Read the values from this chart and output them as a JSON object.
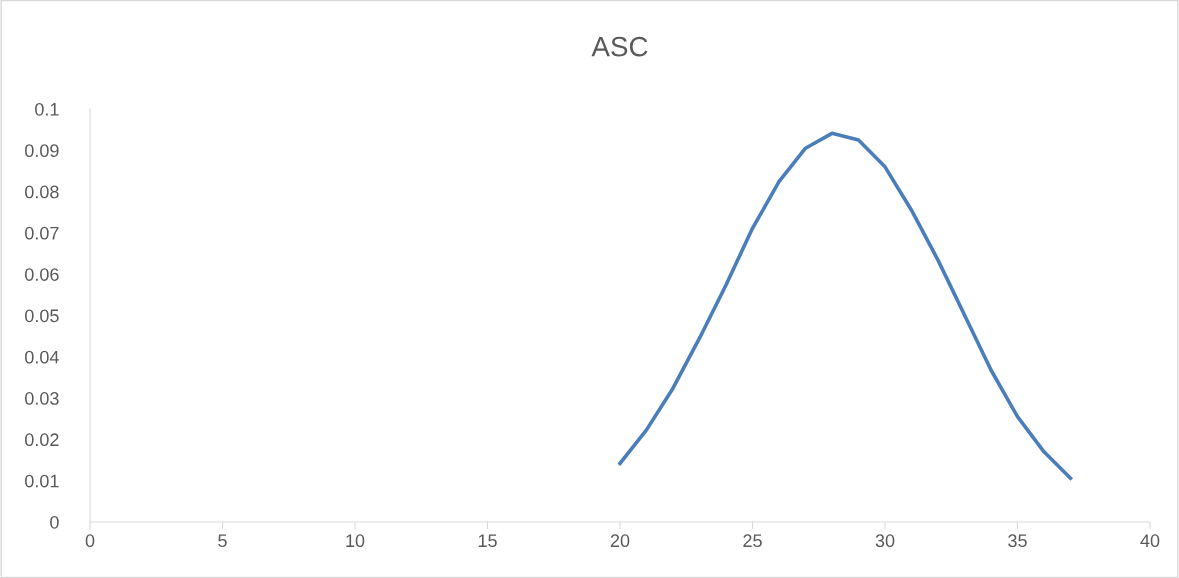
{
  "chart_data": {
    "type": "line",
    "title": "ASC",
    "x": [
      20,
      21,
      22,
      23,
      24,
      25,
      26,
      27,
      28,
      29,
      30,
      31,
      32,
      33,
      34,
      35,
      36,
      37
    ],
    "series": [
      {
        "color": "#4a7ebb",
        "values": [
          0.0142,
          0.0223,
          0.0324,
          0.0445,
          0.0574,
          0.0711,
          0.0824,
          0.0905,
          0.0941,
          0.0925,
          0.086,
          0.0755,
          0.0634,
          0.0501,
          0.0368,
          0.0255,
          0.017,
          0.0106
        ]
      }
    ],
    "xlim": [
      0,
      40
    ],
    "xticks": [
      0,
      5,
      10,
      15,
      20,
      25,
      30,
      35,
      40
    ],
    "ylim": [
      0,
      0.1
    ],
    "yticks": [
      0,
      0.01,
      0.02,
      0.03,
      0.04,
      0.05,
      0.06,
      0.07,
      0.08,
      0.09,
      0.1
    ],
    "grid": false,
    "legend": false,
    "marker": "none",
    "line_style": "solid"
  }
}
